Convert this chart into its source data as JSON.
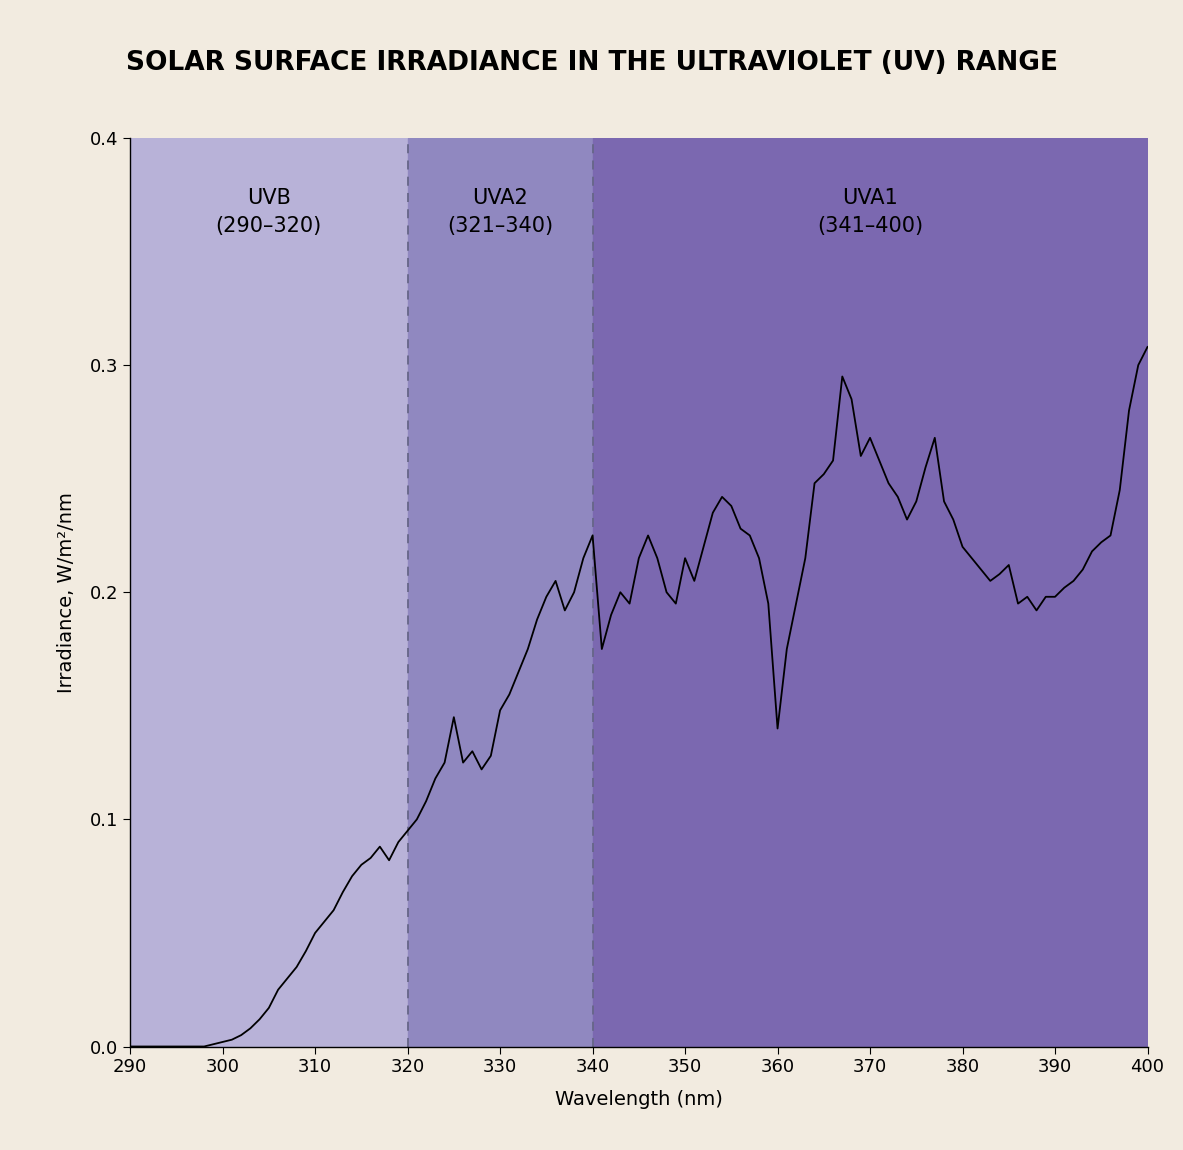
{
  "title": "SOLAR SURFACE IRRADIANCE IN THE ULTRAVIOLET (UV) RANGE",
  "title_bg_color": "#F08878",
  "outer_bg_color": "#F2EBE0",
  "xlabel": "Wavelength (nm)",
  "ylabel": "Irradiance, W/m²/nm",
  "xlim": [
    290,
    400
  ],
  "ylim": [
    0,
    0.4
  ],
  "xticks": [
    290,
    300,
    310,
    320,
    330,
    340,
    350,
    360,
    370,
    380,
    390,
    400
  ],
  "yticks": [
    0,
    0.1,
    0.2,
    0.3,
    0.4
  ],
  "uvb_color": "#B8B2D8",
  "uva2_color": "#9088C0",
  "uva1_color": "#7B68B0",
  "uvb_label": "UVB\n(290–320)",
  "uva2_label": "UVA2\n(321–340)",
  "uva1_label": "UVA1\n(341–400)",
  "dashed_lines": [
    320,
    340
  ],
  "wavelengths": [
    290,
    291,
    292,
    293,
    294,
    295,
    296,
    297,
    298,
    299,
    300,
    301,
    302,
    303,
    304,
    305,
    306,
    307,
    308,
    309,
    310,
    311,
    312,
    313,
    314,
    315,
    316,
    317,
    318,
    319,
    320,
    321,
    322,
    323,
    324,
    325,
    326,
    327,
    328,
    329,
    330,
    331,
    332,
    333,
    334,
    335,
    336,
    337,
    338,
    339,
    340,
    341,
    342,
    343,
    344,
    345,
    346,
    347,
    348,
    349,
    350,
    351,
    352,
    353,
    354,
    355,
    356,
    357,
    358,
    359,
    360,
    361,
    362,
    363,
    364,
    365,
    366,
    367,
    368,
    369,
    370,
    371,
    372,
    373,
    374,
    375,
    376,
    377,
    378,
    379,
    380,
    381,
    382,
    383,
    384,
    385,
    386,
    387,
    388,
    389,
    390,
    391,
    392,
    393,
    394,
    395,
    396,
    397,
    398,
    399,
    400
  ],
  "irradiance": [
    0.0,
    0.0,
    0.0,
    0.0,
    0.0,
    0.0,
    0.0,
    0.0,
    0.0,
    0.001,
    0.002,
    0.003,
    0.005,
    0.008,
    0.012,
    0.017,
    0.025,
    0.03,
    0.035,
    0.042,
    0.05,
    0.055,
    0.06,
    0.068,
    0.075,
    0.08,
    0.083,
    0.088,
    0.082,
    0.09,
    0.095,
    0.1,
    0.108,
    0.118,
    0.125,
    0.145,
    0.125,
    0.13,
    0.122,
    0.128,
    0.148,
    0.155,
    0.165,
    0.175,
    0.188,
    0.198,
    0.205,
    0.192,
    0.2,
    0.215,
    0.225,
    0.175,
    0.19,
    0.2,
    0.195,
    0.215,
    0.225,
    0.215,
    0.2,
    0.195,
    0.215,
    0.205,
    0.22,
    0.235,
    0.242,
    0.238,
    0.228,
    0.225,
    0.215,
    0.195,
    0.14,
    0.175,
    0.195,
    0.215,
    0.248,
    0.252,
    0.258,
    0.295,
    0.285,
    0.26,
    0.268,
    0.258,
    0.248,
    0.242,
    0.232,
    0.24,
    0.255,
    0.268,
    0.24,
    0.232,
    0.22,
    0.215,
    0.21,
    0.205,
    0.208,
    0.212,
    0.195,
    0.198,
    0.192,
    0.198,
    0.198,
    0.202,
    0.205,
    0.21,
    0.218,
    0.222,
    0.225,
    0.245,
    0.28,
    0.3,
    0.308
  ]
}
